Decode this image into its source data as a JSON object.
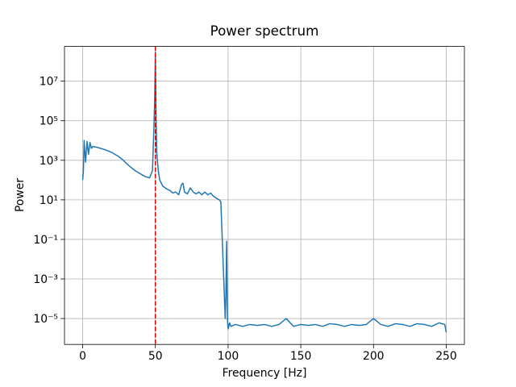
{
  "chart_data": {
    "type": "line",
    "title": "Power spectrum",
    "xlabel": "Frequency [Hz]",
    "ylabel": "Power",
    "yscale": "log",
    "grid": true,
    "xlim": [
      -12.5,
      262.5
    ],
    "ylim": [
      4.9e-07,
      570000000.0
    ],
    "xticks": [
      0,
      50,
      100,
      150,
      200,
      250
    ],
    "yticks": [
      {
        "value": 1e-05,
        "label": "10⁻⁵"
      },
      {
        "value": 0.001,
        "label": "10⁻³"
      },
      {
        "value": 0.1,
        "label": "10⁻¹"
      },
      {
        "value": 10,
        "label": "10¹"
      },
      {
        "value": 1000,
        "label": "10³"
      },
      {
        "value": 100000,
        "label": "10⁵"
      },
      {
        "value": 10000000,
        "label": "10⁷"
      }
    ],
    "x": [
      0,
      0.5,
      1,
      2,
      3,
      4,
      5,
      6,
      7,
      10,
      15,
      20,
      25,
      28,
      30,
      33,
      36,
      40,
      43,
      46,
      48,
      49,
      49.5,
      50,
      50.5,
      51,
      52,
      53,
      55,
      58,
      60,
      62,
      64,
      66,
      68,
      69,
      70,
      72,
      74,
      76,
      78,
      80,
      82,
      84,
      86,
      88,
      90,
      92,
      94,
      95,
      96,
      97,
      97.5,
      98,
      98.5,
      99,
      99.5,
      100,
      101,
      102,
      105,
      110,
      115,
      120,
      125,
      130,
      135,
      140,
      145,
      150,
      155,
      160,
      165,
      170,
      175,
      180,
      185,
      190,
      195,
      200,
      205,
      210,
      215,
      220,
      225,
      230,
      235,
      240,
      245,
      249,
      250
    ],
    "series": [
      {
        "color": "#1f77b4",
        "values": [
          100,
          300,
          10000,
          800,
          9000,
          2000,
          8000,
          4000,
          5000,
          4500,
          3500,
          2500,
          1500,
          1000,
          700,
          450,
          300,
          200,
          150,
          130,
          300,
          50000,
          1000000,
          300000000,
          100000,
          2000,
          300,
          100,
          50,
          35,
          30,
          22,
          25,
          18,
          60,
          70,
          25,
          20,
          40,
          25,
          20,
          25,
          18,
          25,
          18,
          22,
          15,
          12,
          10,
          8,
          0.1,
          0.001,
          0.0001,
          1e-05,
          0.0002,
          0.08,
          1e-05,
          3e-06,
          6e-06,
          4e-06,
          5e-06,
          4e-06,
          5e-06,
          4.5e-06,
          5e-06,
          4e-06,
          5e-06,
          1e-05,
          4e-06,
          5e-06,
          4.5e-06,
          5e-06,
          4e-06,
          5.5e-06,
          5e-06,
          4e-06,
          5e-06,
          4.5e-06,
          5e-06,
          1e-05,
          5e-06,
          4e-06,
          5.5e-06,
          5e-06,
          4e-06,
          5.5e-06,
          5e-06,
          4e-06,
          6e-06,
          5e-06,
          2e-06
        ]
      }
    ],
    "vline": {
      "x": 50,
      "color": "#e00000"
    }
  }
}
